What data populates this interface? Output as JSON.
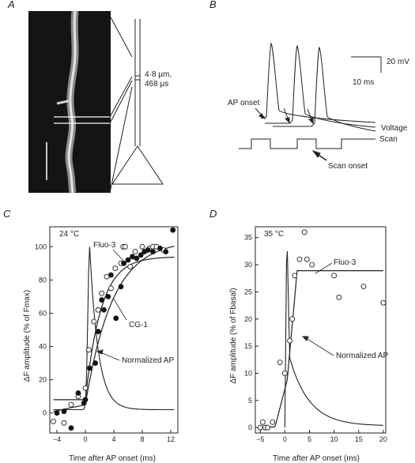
{
  "panels": {
    "A": {
      "label": "A",
      "annotation_line1": "4·8 μm,",
      "annotation_line2": "468 μs"
    },
    "B": {
      "label": "B",
      "scale_mv": "20 mV",
      "scale_ms": "10 ms",
      "ap_onset": "AP onset",
      "voltage": "Voltage",
      "scan": "Scan",
      "scan_onset": "Scan onset"
    },
    "C": {
      "label": "C",
      "temp": "24 °C",
      "fluo_label": "Fluo-3",
      "cg_label": "CG-1",
      "ap_label": "Normalized AP",
      "ylabel": "ΔF amplitude (% of Fmax)",
      "xlabel": "Time after AP onset (ms)"
    },
    "D": {
      "label": "D",
      "temp": "35 °C",
      "fluo_label": "Fluo-3",
      "ap_label": "Normalized AP",
      "ylabel": "ΔF amplitude (% of Fbasal)",
      "xlabel": "Time after AP onset (ms)"
    }
  },
  "chart_data": [
    {
      "type": "scatter",
      "panel": "C",
      "xlabel": "Time after AP onset (ms)",
      "ylabel": "ΔF amplitude (% of Fmax)",
      "xlim": [
        -5,
        13
      ],
      "ylim": [
        -12,
        112
      ],
      "xticks": [
        -4,
        0,
        4,
        8,
        12
      ],
      "yticks": [
        0,
        20,
        40,
        60,
        80,
        100
      ],
      "xtick_labels": [
        "−4",
        "0",
        "4",
        "8",
        "12"
      ],
      "series": [
        {
          "name": "Fluo-3",
          "marker": "open-circle",
          "points": [
            [
              -4.5,
              -5
            ],
            [
              -3,
              -6
            ],
            [
              -2,
              5
            ],
            [
              -1,
              10
            ],
            [
              0,
              15
            ],
            [
              0.5,
              38
            ],
            [
              1.2,
              55
            ],
            [
              1.8,
              62
            ],
            [
              2.3,
              72
            ],
            [
              3,
              82
            ],
            [
              3.6,
              75
            ],
            [
              4.2,
              87
            ],
            [
              5,
              90
            ],
            [
              5.3,
              100
            ],
            [
              5.6,
              100
            ],
            [
              6.3,
              88
            ],
            [
              7,
              97
            ],
            [
              8,
              100
            ],
            [
              9,
              99
            ],
            [
              9.5,
              100
            ],
            [
              10,
              100
            ],
            [
              11,
              98
            ]
          ]
        },
        {
          "name": "CG-1",
          "marker": "filled-circle",
          "points": [
            [
              -4,
              0
            ],
            [
              -3,
              1
            ],
            [
              -2,
              -9
            ],
            [
              -1,
              12
            ],
            [
              -0.2,
              6
            ],
            [
              0,
              8
            ],
            [
              0.6,
              27
            ],
            [
              1.4,
              30
            ],
            [
              1.8,
              49
            ],
            [
              2.3,
              68
            ],
            [
              2.6,
              62
            ],
            [
              3.2,
              70
            ],
            [
              3.6,
              83
            ],
            [
              4.3,
              57
            ],
            [
              5,
              76
            ],
            [
              5.4,
              90
            ],
            [
              6,
              92
            ],
            [
              6.6,
              94
            ],
            [
              7.2,
              93
            ],
            [
              7.8,
              95
            ],
            [
              8.3,
              97
            ],
            [
              8.8,
              98
            ],
            [
              9.5,
              97
            ],
            [
              10.5,
              99
            ],
            [
              11.3,
              97
            ],
            [
              12.3,
              110
            ]
          ]
        }
      ],
      "fit_curves": [
        "Fluo-3",
        "CG-1"
      ],
      "ap_trace": "Normalized AP"
    },
    {
      "type": "scatter",
      "panel": "D",
      "xlabel": "Time after AP onset (ms)",
      "ylabel": "ΔF amplitude (% of Fbasal)",
      "xlim": [
        -6,
        20.5
      ],
      "ylim": [
        -1,
        37
      ],
      "xticks": [
        -5,
        0,
        5,
        10,
        15,
        20
      ],
      "yticks": [
        0,
        5,
        10,
        15,
        20,
        25,
        30,
        35
      ],
      "xtick_labels": [
        "−5",
        "0",
        "5",
        "10",
        "15",
        "20"
      ],
      "series": [
        {
          "name": "Fluo-3",
          "marker": "open-circle",
          "points": [
            [
              -5,
              0
            ],
            [
              -4.5,
              1
            ],
            [
              -4,
              0
            ],
            [
              -3.5,
              0
            ],
            [
              -2.5,
              1
            ],
            [
              -1,
              12
            ],
            [
              0,
              10
            ],
            [
              1,
              16
            ],
            [
              1.5,
              20
            ],
            [
              2,
              28
            ],
            [
              3,
              31
            ],
            [
              4,
              36
            ],
            [
              4.5,
              31
            ],
            [
              5.5,
              30
            ],
            [
              10,
              28
            ],
            [
              11,
              24
            ],
            [
              16,
              26
            ],
            [
              20,
              23
            ]
          ]
        }
      ],
      "fit_curves": [
        "Fluo-3"
      ],
      "ap_trace": "Normalized AP"
    }
  ]
}
